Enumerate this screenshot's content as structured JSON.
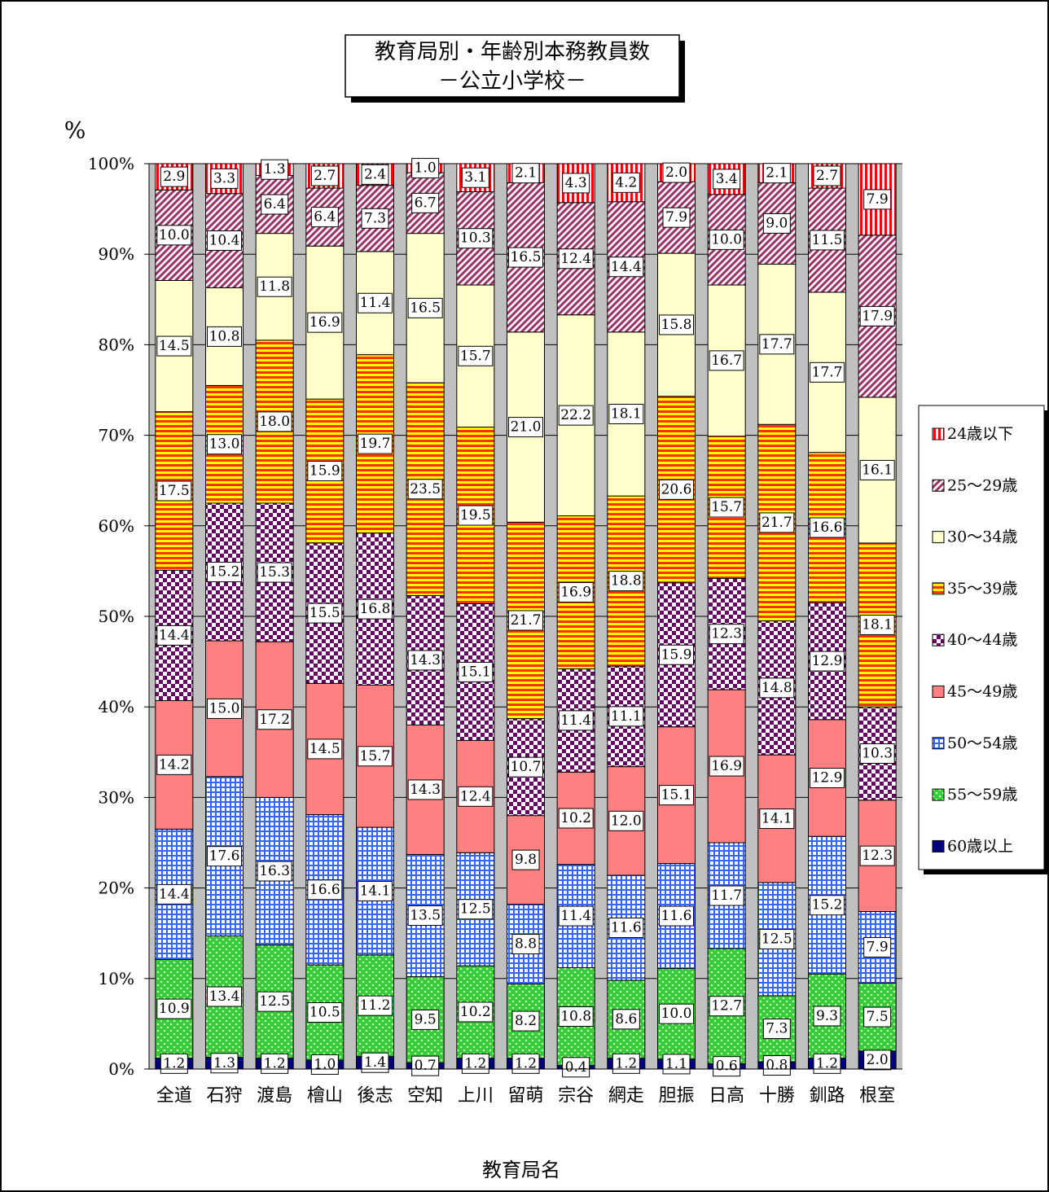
{
  "chart_data": {
    "type": "stacked_bar_100",
    "title": "教育局別・年齢別本務教員数",
    "subtitle": "－公立小学校－",
    "y_axis_label": "%",
    "x_axis_label": "教育局名",
    "categories": [
      "全道",
      "石狩",
      "渡島",
      "檜山",
      "後志",
      "空知",
      "上川",
      "留萌",
      "宗谷",
      "網走",
      "胆振",
      "日高",
      "十勝",
      "釧路",
      "根室"
    ],
    "ylim": [
      0,
      100
    ],
    "yticks": [
      {
        "value": 0,
        "label": "0%"
      },
      {
        "value": 10,
        "label": "10%"
      },
      {
        "value": 20,
        "label": "20%"
      },
      {
        "value": 30,
        "label": "30%"
      },
      {
        "value": 40,
        "label": "40%"
      },
      {
        "value": 50,
        "label": "50%"
      },
      {
        "value": 60,
        "label": "60%"
      },
      {
        "value": 70,
        "label": "70%"
      },
      {
        "value": 80,
        "label": "80%"
      },
      {
        "value": 90,
        "label": "90%"
      },
      {
        "value": 100,
        "label": "100%"
      }
    ],
    "grid": true,
    "legend_position": "right",
    "series": [
      {
        "name": "60歳以上",
        "color": "#000080",
        "pattern": "solid",
        "values": [
          1.2,
          1.3,
          1.2,
          1.0,
          1.4,
          0.7,
          1.2,
          1.2,
          0.4,
          1.2,
          1.1,
          0.6,
          0.8,
          1.2,
          2.0
        ],
        "value_labels": [
          "1.2",
          "1.3",
          "1.2",
          "1.0",
          "1.4",
          "0.7",
          "1.2",
          "1.2",
          "0.4",
          "1.2",
          "1.1",
          "0.6",
          "0.8",
          "1.2",
          "2.0"
        ]
      },
      {
        "name": "55～59歳",
        "color": "#33cc33",
        "pattern": "dots",
        "values": [
          10.9,
          13.4,
          12.5,
          10.5,
          11.2,
          9.5,
          10.2,
          8.2,
          10.8,
          8.6,
          10.0,
          12.7,
          7.3,
          9.3,
          7.5
        ],
        "value_labels": [
          "10.9",
          "13.4",
          "12.5",
          "10.5",
          "11.2",
          "9.5",
          "10.2",
          "8.2",
          "10.8",
          "8.6",
          "10.0",
          "12.7",
          "7.3",
          "9.3",
          "7.5"
        ]
      },
      {
        "name": "50～54歳",
        "color": "#3366ff",
        "pattern": "grid",
        "values": [
          14.4,
          17.6,
          16.3,
          16.6,
          14.1,
          13.5,
          12.5,
          8.8,
          11.4,
          11.6,
          11.6,
          11.7,
          12.5,
          15.2,
          7.9
        ],
        "value_labels": [
          "14.4",
          "17.6",
          "16.3",
          "16.6",
          "14.1",
          "13.5",
          "12.5",
          "8.8",
          "11.4",
          "11.6",
          "11.6",
          "11.7",
          "12.5",
          "15.2",
          "7.9"
        ]
      },
      {
        "name": "45～49歳",
        "color": "#ff8080",
        "pattern": "solid",
        "values": [
          14.2,
          15.0,
          17.2,
          14.5,
          15.7,
          14.3,
          12.4,
          9.8,
          10.2,
          12.0,
          15.1,
          16.9,
          14.1,
          12.9,
          12.3
        ],
        "value_labels": [
          "14.2",
          "15.0",
          "17.2",
          "14.5",
          "15.7",
          "14.3",
          "12.4",
          "9.8",
          "10.2",
          "12.0",
          "15.1",
          "16.9",
          "14.1",
          "12.9",
          "12.3"
        ]
      },
      {
        "name": "40～44歳",
        "color": "#660066",
        "pattern": "checker",
        "values": [
          14.4,
          15.2,
          15.3,
          15.5,
          16.8,
          14.3,
          15.1,
          10.7,
          11.4,
          11.1,
          15.9,
          12.3,
          14.8,
          12.9,
          10.3
        ],
        "value_labels": [
          "14.4",
          "15.2",
          "15.3",
          "15.5",
          "16.8",
          "14.3",
          "15.1",
          "10.7",
          "11.4",
          "11.1",
          "15.9",
          "12.3",
          "14.8",
          "12.9",
          "10.3"
        ]
      },
      {
        "name": "35～39歳",
        "color": "#ff3300",
        "pattern": "hstripe",
        "values": [
          17.5,
          13.0,
          18.0,
          15.9,
          19.7,
          23.5,
          19.5,
          21.7,
          16.9,
          18.8,
          20.6,
          15.7,
          21.7,
          16.6,
          18.1
        ],
        "value_labels": [
          "17.5",
          "13.0",
          "18.0",
          "15.9",
          "19.7",
          "23.5",
          "19.5",
          "21.7",
          "16.9",
          "18.8",
          "20.6",
          "15.7",
          "21.7",
          "16.6",
          "18.1"
        ]
      },
      {
        "name": "30～34歳",
        "color": "#ffffcc",
        "pattern": "solid",
        "values": [
          14.5,
          10.8,
          11.8,
          16.9,
          11.4,
          16.5,
          15.7,
          21.0,
          22.2,
          18.1,
          15.8,
          16.7,
          17.7,
          17.7,
          16.1
        ],
        "value_labels": [
          "14.5",
          "10.8",
          "11.8",
          "16.9",
          "11.4",
          "16.5",
          "15.7",
          "21.0",
          "22.2",
          "18.1",
          "15.8",
          "16.7",
          "17.7",
          "17.7",
          "16.1"
        ]
      },
      {
        "name": "25～29歳",
        "color": "#993366",
        "pattern": "diag",
        "values": [
          10.0,
          10.4,
          6.4,
          6.4,
          7.3,
          6.7,
          10.3,
          16.5,
          12.4,
          14.4,
          7.9,
          10.0,
          9.0,
          11.5,
          17.9
        ],
        "value_labels": [
          "10.0",
          "10.4",
          "6.4",
          "6.4",
          "7.3",
          "6.7",
          "10.3",
          "16.5",
          "12.4",
          "14.4",
          "7.9",
          "10.0",
          "9.0",
          "11.5",
          "17.9"
        ]
      },
      {
        "name": "24歳以下",
        "color": "#ff0000",
        "pattern": "vstripe",
        "values": [
          2.9,
          3.3,
          1.3,
          2.7,
          2.4,
          1.0,
          3.1,
          2.1,
          4.3,
          4.2,
          2.0,
          3.4,
          2.1,
          2.7,
          7.9
        ],
        "value_labels": [
          "2.9",
          "3.3",
          "1.3",
          "2.7",
          "2.4",
          "1.0",
          "3.1",
          "2.1",
          "4.3",
          "4.2",
          "2.0",
          "3.4",
          "2.1",
          "2.7",
          "7.9"
        ]
      }
    ]
  }
}
